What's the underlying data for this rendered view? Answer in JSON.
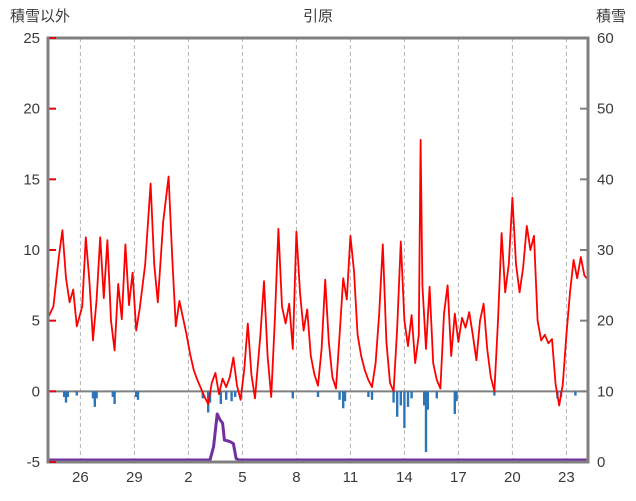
{
  "chart_data": {
    "type": "line",
    "title": "引原",
    "left_axis": {
      "label": "積雪以外",
      "min": -5,
      "max": 25,
      "ticks": [
        25,
        20,
        15,
        10,
        5,
        0,
        -5
      ]
    },
    "right_axis": {
      "label": "積雪",
      "min": 0,
      "max": 60,
      "ticks": [
        60,
        50,
        40,
        30,
        20,
        10,
        0
      ]
    },
    "x_axis": {
      "min": 0,
      "max": 30,
      "tick_positions": [
        1.8,
        4.8,
        7.8,
        10.8,
        13.8,
        16.8,
        19.8,
        22.8,
        25.8,
        28.8
      ],
      "tick_labels": [
        "26",
        "29",
        "2",
        "5",
        "8",
        "11",
        "14",
        "17",
        "20",
        "23"
      ]
    },
    "grid": "vertical-dashed",
    "zero_line": 0,
    "colors": {
      "frame": "#7f7f7f",
      "grid": "#b3b3b3",
      "zero_line": "#808080",
      "left_tick": "#e8000d",
      "right_tick": "#808080",
      "text": "#3a3a3a"
    },
    "series": [
      {
        "name": "temperature",
        "type": "line",
        "axis": "left",
        "color": "#ff0000",
        "points": [
          [
            0,
            5.2
          ],
          [
            0.3,
            6
          ],
          [
            0.6,
            9.5
          ],
          [
            0.8,
            11.4
          ],
          [
            1,
            8
          ],
          [
            1.2,
            6.3
          ],
          [
            1.4,
            7.2
          ],
          [
            1.6,
            4.6
          ],
          [
            1.9,
            6
          ],
          [
            2.1,
            10.9
          ],
          [
            2.3,
            7.8
          ],
          [
            2.5,
            3.6
          ],
          [
            2.7,
            6.5
          ],
          [
            2.9,
            10.9
          ],
          [
            3.1,
            6.6
          ],
          [
            3.3,
            10.7
          ],
          [
            3.5,
            5
          ],
          [
            3.7,
            2.9
          ],
          [
            3.9,
            7.6
          ],
          [
            4.1,
            5.1
          ],
          [
            4.3,
            10.4
          ],
          [
            4.5,
            6.1
          ],
          [
            4.7,
            8.4
          ],
          [
            4.9,
            4.3
          ],
          [
            5.1,
            5.9
          ],
          [
            5.4,
            9
          ],
          [
            5.7,
            14.7
          ],
          [
            5.9,
            9
          ],
          [
            6.1,
            6.3
          ],
          [
            6.4,
            12
          ],
          [
            6.7,
            15.2
          ],
          [
            6.9,
            9.5
          ],
          [
            7.1,
            4.6
          ],
          [
            7.3,
            6.4
          ],
          [
            7.5,
            5.2
          ],
          [
            7.7,
            4
          ],
          [
            7.9,
            2.6
          ],
          [
            8.1,
            1.5
          ],
          [
            8.3,
            0.8
          ],
          [
            8.5,
            0.2
          ],
          [
            8.7,
            -0.4
          ],
          [
            8.9,
            -0.9
          ],
          [
            9.1,
            0.6
          ],
          [
            9.3,
            1.3
          ],
          [
            9.5,
            -0.2
          ],
          [
            9.7,
            0.9
          ],
          [
            9.9,
            0.3
          ],
          [
            10.1,
            1
          ],
          [
            10.3,
            2.4
          ],
          [
            10.5,
            0.4
          ],
          [
            10.7,
            -0.6
          ],
          [
            10.9,
            1.5
          ],
          [
            11.1,
            4.8
          ],
          [
            11.3,
            1.2
          ],
          [
            11.5,
            -0.5
          ],
          [
            11.8,
            4
          ],
          [
            12,
            7.8
          ],
          [
            12.2,
            2.5
          ],
          [
            12.4,
            -0.4
          ],
          [
            12.6,
            5
          ],
          [
            12.8,
            11.5
          ],
          [
            13,
            6
          ],
          [
            13.2,
            4.8
          ],
          [
            13.4,
            6.2
          ],
          [
            13.6,
            3
          ],
          [
            13.8,
            11.3
          ],
          [
            14,
            7
          ],
          [
            14.2,
            4.3
          ],
          [
            14.4,
            5.8
          ],
          [
            14.6,
            2.5
          ],
          [
            14.8,
            1.2
          ],
          [
            15,
            0.4
          ],
          [
            15.2,
            3
          ],
          [
            15.4,
            7.9
          ],
          [
            15.6,
            3.5
          ],
          [
            15.8,
            1
          ],
          [
            16,
            0.2
          ],
          [
            16.2,
            4
          ],
          [
            16.4,
            8
          ],
          [
            16.6,
            6.5
          ],
          [
            16.8,
            11
          ],
          [
            17,
            8.5
          ],
          [
            17.2,
            4
          ],
          [
            17.4,
            2.5
          ],
          [
            17.6,
            1.5
          ],
          [
            17.8,
            0.8
          ],
          [
            18,
            0.3
          ],
          [
            18.2,
            2
          ],
          [
            18.4,
            5.5
          ],
          [
            18.6,
            10.4
          ],
          [
            18.8,
            3.5
          ],
          [
            19,
            0.6
          ],
          [
            19.2,
            0
          ],
          [
            19.4,
            4.5
          ],
          [
            19.6,
            10.6
          ],
          [
            19.8,
            5
          ],
          [
            20,
            3.2
          ],
          [
            20.2,
            5.4
          ],
          [
            20.4,
            2
          ],
          [
            20.6,
            4
          ],
          [
            20.7,
            17.8
          ],
          [
            20.8,
            7.5
          ],
          [
            21,
            3
          ],
          [
            21.2,
            7.4
          ],
          [
            21.4,
            2
          ],
          [
            21.6,
            0.8
          ],
          [
            21.8,
            0.2
          ],
          [
            22,
            5.5
          ],
          [
            22.2,
            7.5
          ],
          [
            22.4,
            2.5
          ],
          [
            22.6,
            5.5
          ],
          [
            22.8,
            3.5
          ],
          [
            23,
            5.2
          ],
          [
            23.2,
            4.5
          ],
          [
            23.4,
            5.6
          ],
          [
            23.6,
            4
          ],
          [
            23.8,
            2.2
          ],
          [
            24,
            5
          ],
          [
            24.2,
            6.2
          ],
          [
            24.4,
            3
          ],
          [
            24.6,
            1
          ],
          [
            24.8,
            0
          ],
          [
            25,
            5
          ],
          [
            25.2,
            11.2
          ],
          [
            25.4,
            7
          ],
          [
            25.6,
            9
          ],
          [
            25.8,
            13.7
          ],
          [
            26,
            9
          ],
          [
            26.2,
            7
          ],
          [
            26.4,
            8.8
          ],
          [
            26.6,
            11.7
          ],
          [
            26.8,
            10
          ],
          [
            27,
            11
          ],
          [
            27.2,
            5
          ],
          [
            27.4,
            3.6
          ],
          [
            27.6,
            4
          ],
          [
            27.8,
            3.4
          ],
          [
            28,
            3.7
          ],
          [
            28.2,
            0.5
          ],
          [
            28.4,
            -1
          ],
          [
            28.6,
            0.5
          ],
          [
            28.8,
            4
          ],
          [
            29,
            7
          ],
          [
            29.2,
            9.3
          ],
          [
            29.4,
            8
          ],
          [
            29.6,
            9.5
          ],
          [
            29.8,
            8.2
          ],
          [
            30,
            7.9
          ]
        ]
      },
      {
        "name": "precipitation",
        "type": "bar",
        "axis": "left",
        "direction": "down",
        "color": "#2e75b6",
        "points": [
          [
            0.9,
            0.4
          ],
          [
            1,
            0.8
          ],
          [
            1.1,
            0.4
          ],
          [
            1.6,
            0.3
          ],
          [
            2.5,
            0.5
          ],
          [
            2.6,
            1.1
          ],
          [
            2.7,
            0.5
          ],
          [
            3.6,
            0.4
          ],
          [
            3.7,
            0.9
          ],
          [
            4.9,
            0.4
          ],
          [
            5,
            0.6
          ],
          [
            8.6,
            0.5
          ],
          [
            8.9,
            1.5
          ],
          [
            9,
            0.8
          ],
          [
            9.6,
            0.9
          ],
          [
            9.9,
            0.6
          ],
          [
            10.2,
            0.7
          ],
          [
            10.4,
            0.4
          ],
          [
            13.6,
            0.5
          ],
          [
            15,
            0.4
          ],
          [
            16.2,
            0.6
          ],
          [
            16.4,
            1.2
          ],
          [
            16.5,
            0.7
          ],
          [
            17.8,
            0.4
          ],
          [
            18,
            0.6
          ],
          [
            19.2,
            0.8
          ],
          [
            19.4,
            1.8
          ],
          [
            19.6,
            1
          ],
          [
            19.8,
            2.6
          ],
          [
            20,
            1.1
          ],
          [
            20.2,
            0.5
          ],
          [
            20.9,
            1
          ],
          [
            21,
            4.3
          ],
          [
            21.1,
            1.3
          ],
          [
            21.6,
            0.5
          ],
          [
            22.6,
            1.6
          ],
          [
            22.7,
            0.7
          ],
          [
            24.8,
            0.3
          ],
          [
            28.3,
            0.5
          ],
          [
            28.5,
            0.4
          ],
          [
            29.3,
            0.3
          ]
        ]
      },
      {
        "name": "snow-depth",
        "type": "line",
        "axis": "right",
        "color": "#7030a0",
        "points": [
          [
            0,
            0
          ],
          [
            9,
            0
          ],
          [
            9.2,
            2.2
          ],
          [
            9.4,
            6.8
          ],
          [
            9.55,
            6
          ],
          [
            9.7,
            5.5
          ],
          [
            9.8,
            3.1
          ],
          [
            10.1,
            2.9
          ],
          [
            10.3,
            2.6
          ],
          [
            10.45,
            0.5
          ],
          [
            10.6,
            0
          ],
          [
            30,
            0
          ]
        ]
      }
    ]
  }
}
